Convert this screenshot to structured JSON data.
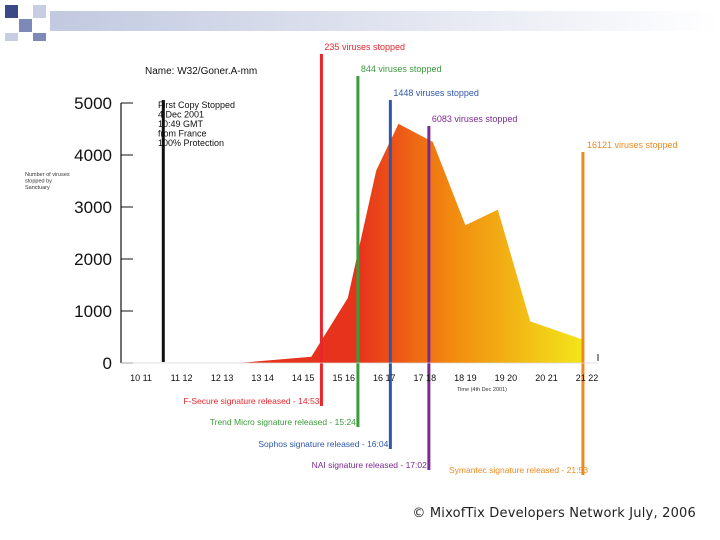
{
  "colors": {
    "square_dark": "#3b4a86",
    "square_mid": "#7d8ab8",
    "square_light": "#c7cde2",
    "band_start": "#c2c9e0",
    "area_start": "#e8331c",
    "area_mid": "#f28a10",
    "area_end": "#f3e61a",
    "red": "#e8262b",
    "green": "#3a9b3a",
    "blue": "#2f57a8",
    "purple": "#7a2b8f",
    "orange": "#ec8a22"
  },
  "chart_data": {
    "type": "area",
    "y_ticks": [
      "5000",
      "4000",
      "3000",
      "2000",
      "1000",
      "0"
    ],
    "ylim": [
      0,
      5000
    ],
    "ylabel": "Number of viruses stopped by Sanctuary",
    "x_ticks": [
      "10 11",
      "11 12",
      "12 13",
      "13 14",
      "14 15",
      "15 16",
      "16 17",
      "17 18",
      "18 19",
      "19 20",
      "20 21",
      "21 22"
    ],
    "xlabel": "Time (4th Dec 2001)",
    "xlim": [
      10.5,
      21.5
    ],
    "series": [
      {
        "name": "Viruses",
        "x": [
          12.9,
          14.7,
          15.6,
          16.3,
          16.85,
          17.7,
          18.5,
          19.3,
          20.1,
          21.4
        ],
        "y": [
          0,
          120,
          1250,
          3700,
          4600,
          4250,
          2650,
          2950,
          800,
          450
        ]
      }
    ],
    "first_copy": {
      "name": "Name:  W32/Goner.A-mm",
      "x": 11.05,
      "lines": [
        "First Copy Stopped",
        "4 Dec 2001",
        "10:49 GMT",
        "from France",
        "",
        "100% Protection"
      ]
    },
    "releases": [
      {
        "x": 14.95,
        "top_label": "235 viruses stopped",
        "bottom_label": "F-Secure signature released - 14:53",
        "color": "#e8262b"
      },
      {
        "x": 15.85,
        "top_label": "844 viruses stopped",
        "bottom_label": "Trend Micro signature released - 15:24",
        "color": "#3a9b3a"
      },
      {
        "x": 16.65,
        "top_label": "1448 viruses stopped",
        "bottom_label": "Sophos signature released - 16:04",
        "color": "#2f57a8"
      },
      {
        "x": 17.6,
        "top_label": "6083 viruses stopped",
        "bottom_label": "NAI signature released - 17:02",
        "color": "#7a2b8f"
      },
      {
        "x": 21.4,
        "top_label": "16121 viruses stopped",
        "bottom_label": "Symantec signature released - 21:53",
        "color": "#ec8a22"
      }
    ]
  },
  "footer": {
    "copyright": "© MixofTix Developers Network July, 2006"
  }
}
